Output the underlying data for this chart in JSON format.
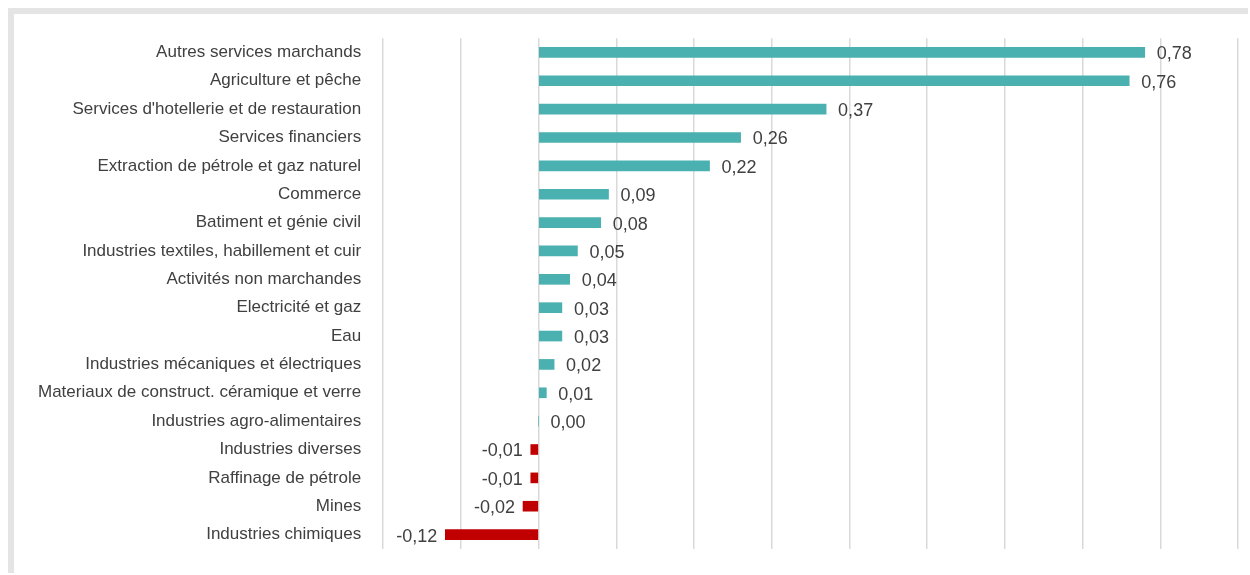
{
  "chart_data": {
    "type": "bar",
    "orientation": "horizontal",
    "categories": [
      "Autres services marchands",
      "Agriculture et pêche",
      "Services d'hotellerie et de restauration",
      "Services financiers",
      "Extraction de pétrole et gaz naturel",
      "Commerce",
      "Batiment et génie civil",
      "Industries textiles, habillement et cuir",
      "Activités non marchandes",
      "Electricité et gaz",
      "Eau",
      "Industries mécaniques et électriques",
      "Materiaux de construct. céramique et verre",
      "Industries agro-alimentaires",
      "Industries diverses",
      "Raffinage de pétrole",
      "Mines",
      "Industries chimiques"
    ],
    "values": [
      0.78,
      0.76,
      0.37,
      0.26,
      0.22,
      0.09,
      0.08,
      0.05,
      0.04,
      0.03,
      0.03,
      0.02,
      0.01,
      0.0,
      -0.01,
      -0.01,
      -0.02,
      -0.12
    ],
    "colors": [
      "#4bb0b0",
      "#4bb0b0",
      "#4bb0b0",
      "#4bb0b0",
      "#4bb0b0",
      "#4bb0b0",
      "#4bb0b0",
      "#4bb0b0",
      "#4bb0b0",
      "#4bb0b0",
      "#4bb0b0",
      "#4bb0b0",
      "#4bb0b0",
      "#4bb0b0",
      "#c00000",
      "#c00000",
      "#c00000",
      "#c00000"
    ],
    "value_labels": [
      "0,78",
      "0,76",
      "0,37",
      "0,26",
      "0,22",
      "0,09",
      "0,08",
      "0,05",
      "0,04",
      "0,03",
      "0,03",
      "0,02",
      "0,01",
      "0,00",
      "-0,01",
      "-0,01",
      "-0,02",
      "-0,12"
    ],
    "xlim": [
      -0.2,
      0.9
    ],
    "xticks": [
      {
        "value": -0.2,
        "label": null
      },
      {
        "value": -0.1,
        "label": null
      },
      {
        "value": 0,
        "label": null
      },
      {
        "value": 0.1,
        "label": null
      },
      {
        "value": 0.2,
        "label": null
      },
      {
        "value": 0.3,
        "label": null
      },
      {
        "value": 0.4,
        "label": null
      },
      {
        "value": 0.5,
        "label": null
      },
      {
        "value": 0.6,
        "label": null
      },
      {
        "value": 0.7,
        "label": null
      },
      {
        "value": 0.8,
        "label": null
      },
      {
        "value": 0.9,
        "label": null
      }
    ],
    "grid": "x",
    "tick_labels": "y",
    "legend": false
  }
}
